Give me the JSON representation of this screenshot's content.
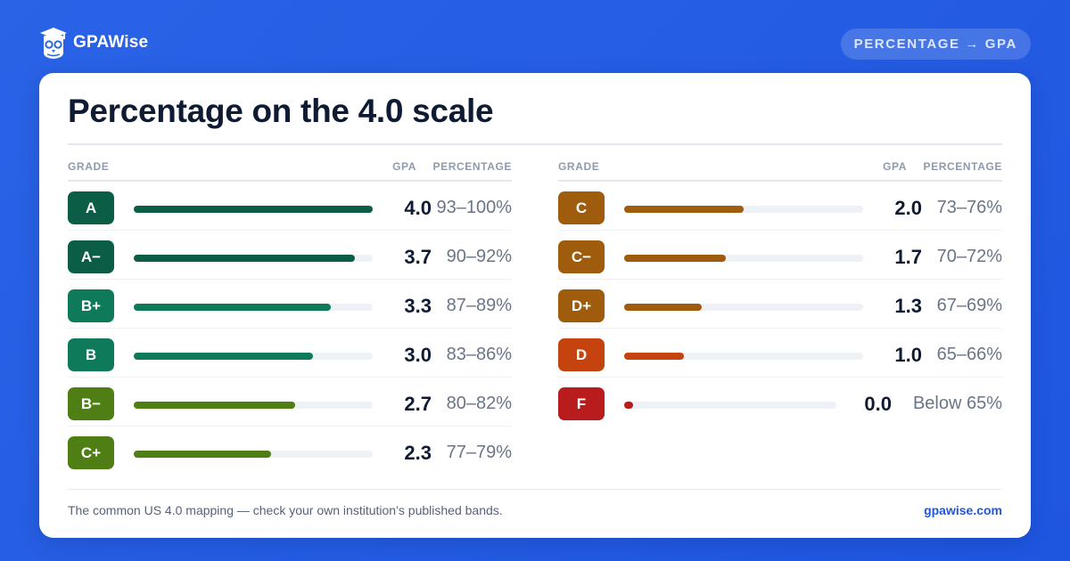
{
  "brand": {
    "name": "GPAWise",
    "icon": "owl-icon"
  },
  "pill_label": "PERCENTAGE → GPA",
  "colors": {
    "background": "#2159e1",
    "dark_green": "#0b5e45",
    "green": "#0f7a59",
    "olive": "#4f7f14",
    "amber": "#9e5c0c",
    "orange": "#c4430f",
    "red": "#b91c1c",
    "link": "#1f56e0"
  },
  "chart_data": {
    "type": "bar",
    "title": "Percentage on the 4.0 scale",
    "columns": {
      "grade": "GRADE",
      "gpa": "GPA",
      "percentage": "PERCENTAGE"
    },
    "xlim": [
      0,
      4.0
    ],
    "rows": [
      {
        "grade": "A",
        "gpa": 4.0,
        "gpa_label": "4.0",
        "percentage": "93–100%",
        "color": "#0b5e45"
      },
      {
        "grade": "A−",
        "gpa": 3.7,
        "gpa_label": "3.7",
        "percentage": "90–92%",
        "color": "#0b5e45"
      },
      {
        "grade": "B+",
        "gpa": 3.3,
        "gpa_label": "3.3",
        "percentage": "87–89%",
        "color": "#0f7a59"
      },
      {
        "grade": "B",
        "gpa": 3.0,
        "gpa_label": "3.0",
        "percentage": "83–86%",
        "color": "#0f7a59"
      },
      {
        "grade": "B−",
        "gpa": 2.7,
        "gpa_label": "2.7",
        "percentage": "80–82%",
        "color": "#4f7f14"
      },
      {
        "grade": "C+",
        "gpa": 2.3,
        "gpa_label": "2.3",
        "percentage": "77–79%",
        "color": "#4f7f14"
      },
      {
        "grade": "C",
        "gpa": 2.0,
        "gpa_label": "2.0",
        "percentage": "73–76%",
        "color": "#9e5c0c"
      },
      {
        "grade": "C−",
        "gpa": 1.7,
        "gpa_label": "1.7",
        "percentage": "70–72%",
        "color": "#9e5c0c"
      },
      {
        "grade": "D+",
        "gpa": 1.3,
        "gpa_label": "1.3",
        "percentage": "67–69%",
        "color": "#9e5c0c"
      },
      {
        "grade": "D",
        "gpa": 1.0,
        "gpa_label": "1.0",
        "percentage": "65–66%",
        "color": "#c4430f"
      },
      {
        "grade": "F",
        "gpa": 0.0,
        "gpa_label": "0.0",
        "percentage": "Below 65%",
        "color": "#b91c1c"
      }
    ]
  },
  "footnote": "The common US 4.0 mapping — check your own institution’s published bands.",
  "site": "gpawise.com"
}
